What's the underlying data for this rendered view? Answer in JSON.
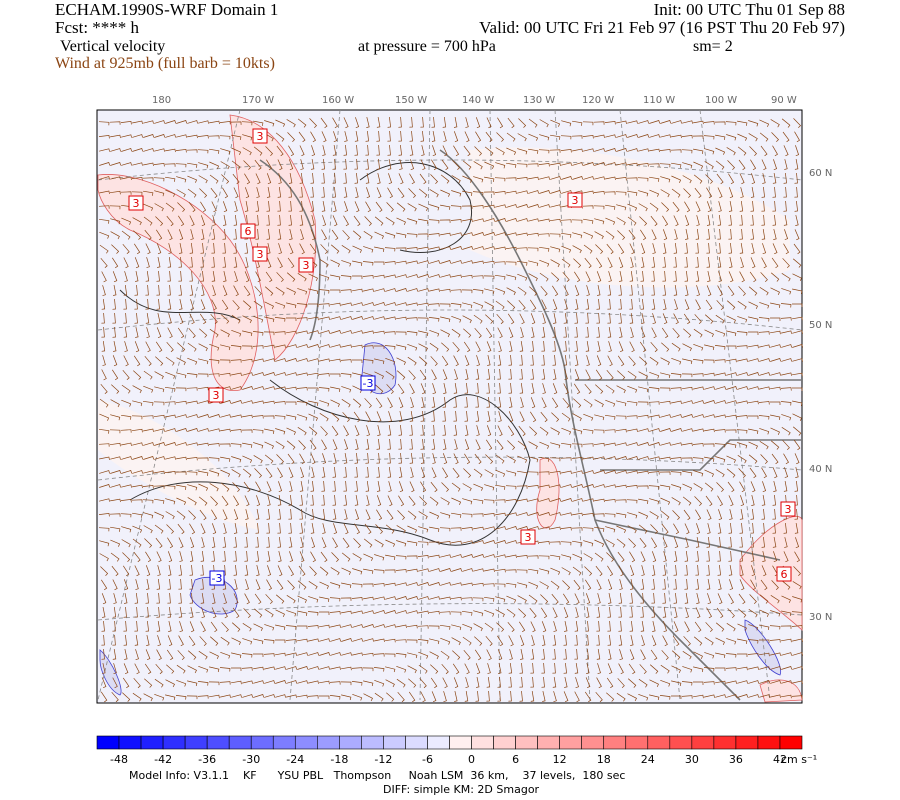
{
  "header": {
    "left": [
      "ECHAM.1990S-WRF Domain 1",
      "Fcst: **** h",
      "Vertical velocity",
      "Wind at 925mb (full barb = 10kts)"
    ],
    "init": "Init: 00 UTC Thu 01 Sep 88",
    "valid": "Valid: 00 UTC Fri 21 Feb 97 (16 PST Thu 20 Feb 97)",
    "pressure": "at pressure =  700 hPa",
    "smooth": "sm= 2"
  },
  "map": {
    "lon_labels": [
      "180",
      "170 W",
      "160 W",
      "150 W",
      "140 W",
      "130 W",
      "120 W",
      "110 W",
      "100 W",
      "90 W"
    ],
    "lat_labels": [
      "60 N",
      "50 N",
      "40 N",
      "30 N"
    ],
    "contour_labels": [
      "3",
      "3",
      "6",
      "3",
      "3",
      "3",
      "3",
      "-3",
      "3",
      "3",
      "6",
      "-3"
    ]
  },
  "colorbar": {
    "labels": [
      -48,
      -42,
      -36,
      -30,
      -24,
      -18,
      -12,
      -6,
      0,
      6,
      12,
      18,
      24,
      30,
      36,
      42
    ],
    "unit": "cm s⁻¹",
    "low_color": "#0000ff",
    "mid_color": "#ffffff",
    "high_color": "#ff0000"
  },
  "footer": [
    "Model Info: V3.1.1    KF      YSU PBL   Thompson     Noah LSM  36 km,    37 levels,  180 sec",
    "DIFF: simple KM: 2D Smagor"
  ]
}
